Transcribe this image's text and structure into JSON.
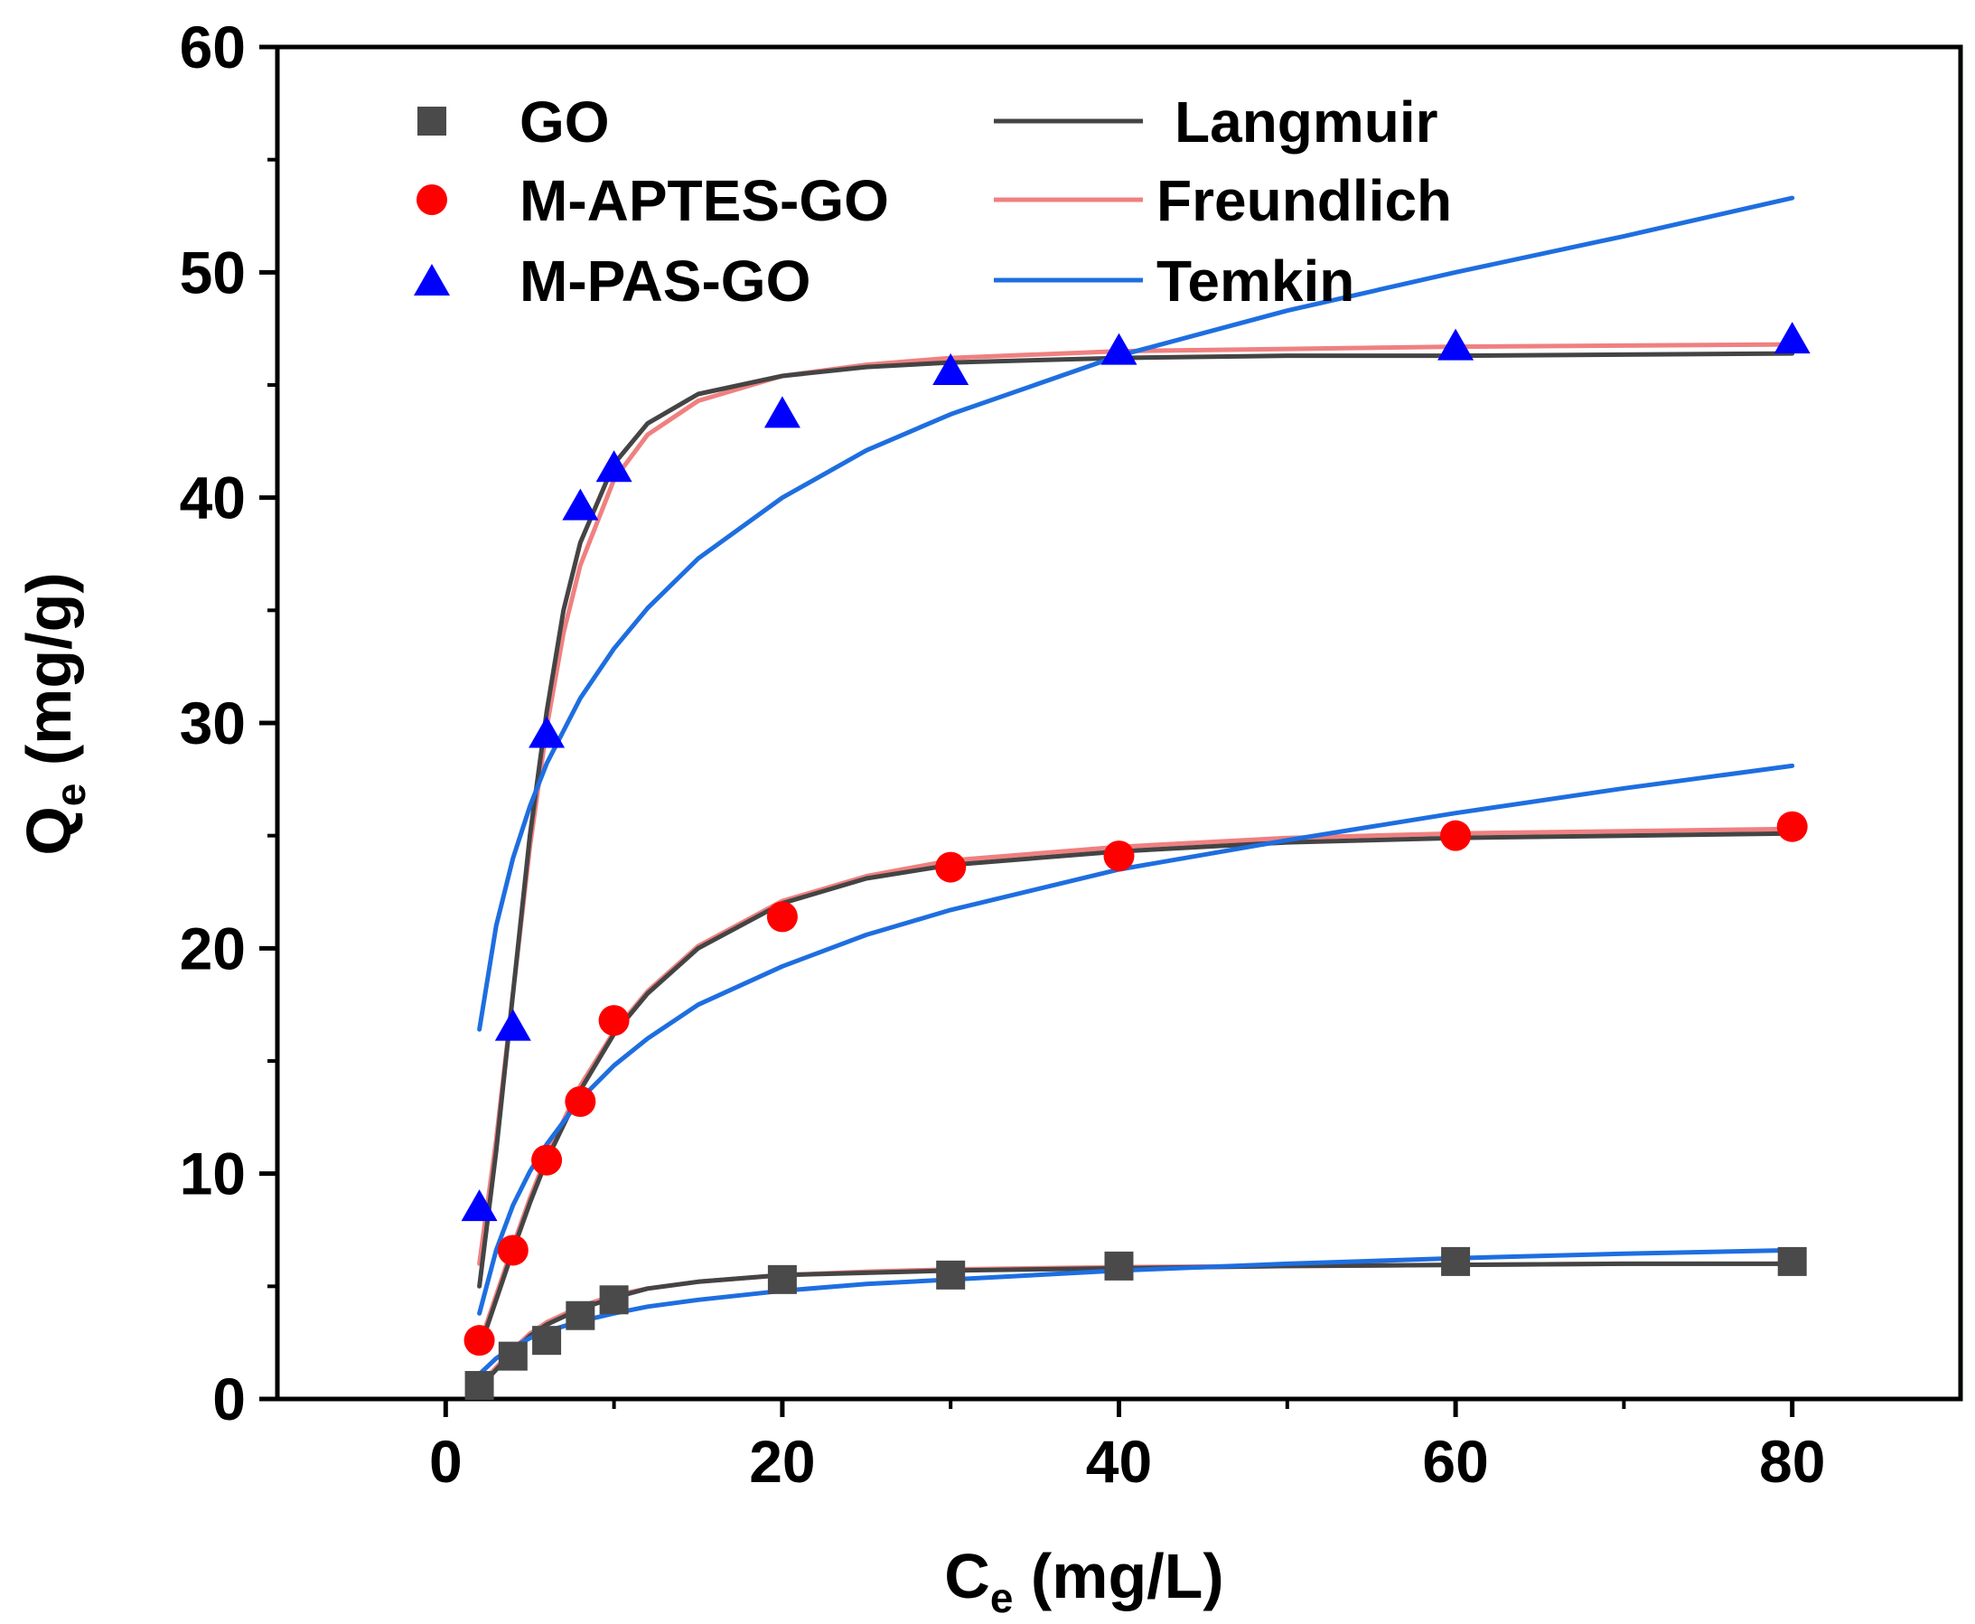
{
  "chart_data": {
    "type": "scatter",
    "xlabel": {
      "main": "C",
      "sub": "e",
      "rest": " (mg/L)"
    },
    "ylabel": {
      "main": "Q",
      "sub": "e",
      "rest": " (mg/g)"
    },
    "xlim": [
      -10,
      90
    ],
    "ylim": [
      0,
      60
    ],
    "x_ticks": [
      0,
      20,
      40,
      60,
      80
    ],
    "y_ticks": [
      0,
      10,
      20,
      30,
      40,
      50,
      60
    ],
    "x_tick_labels": [
      "0",
      "20",
      "40",
      "60",
      "80"
    ],
    "y_tick_labels": [
      "0",
      "10",
      "20",
      "30",
      "40",
      "50",
      "60"
    ],
    "series": [
      {
        "name": "GO",
        "marker": "square",
        "color": "#4a4a4a",
        "x": [
          2,
          4,
          6,
          8,
          10,
          20,
          30,
          40,
          60,
          80
        ],
        "y": [
          0.6,
          1.9,
          2.6,
          3.7,
          4.4,
          5.3,
          5.5,
          5.9,
          6.1,
          6.1
        ]
      },
      {
        "name": "M-APTES-GO",
        "marker": "circle",
        "color": "#ff0000",
        "x": [
          2,
          4,
          6,
          8,
          10,
          20,
          30,
          40,
          60,
          80
        ],
        "y": [
          2.6,
          6.6,
          10.6,
          13.2,
          16.8,
          21.4,
          23.6,
          24.1,
          25.0,
          25.4
        ]
      },
      {
        "name": "M-PAS-GO",
        "marker": "triangle",
        "color": "#0000ff",
        "x": [
          2,
          4,
          6,
          8,
          10,
          20,
          30,
          40,
          60,
          80
        ],
        "y": [
          8.5,
          16.5,
          29.5,
          39.6,
          41.3,
          43.7,
          45.6,
          46.5,
          46.7,
          47.0
        ]
      }
    ],
    "fits": [
      {
        "name": "Langmuir",
        "color": "#444444",
        "curves": [
          {
            "x": [
              2,
              3,
              4,
              5,
              6,
              8,
              10,
              12,
              15,
              20,
              25,
              30,
              40,
              50,
              60,
              70,
              80
            ],
            "y": [
              0.5,
              1.3,
              2.1,
              2.8,
              3.3,
              4.0,
              4.5,
              4.9,
              5.2,
              5.5,
              5.6,
              5.7,
              5.8,
              5.9,
              5.95,
              6.0,
              6.0
            ]
          },
          {
            "x": [
              2,
              3,
              4,
              5,
              6,
              8,
              10,
              12,
              15,
              20,
              25,
              30,
              40,
              50,
              60,
              70,
              80
            ],
            "y": [
              2.2,
              4.4,
              6.6,
              8.7,
              10.6,
              13.7,
              16.2,
              18.0,
              20.0,
              22.0,
              23.1,
              23.7,
              24.3,
              24.7,
              24.9,
              25.0,
              25.1
            ]
          },
          {
            "x": [
              2,
              3,
              4,
              5,
              6,
              7,
              8,
              10,
              12,
              15,
              20,
              25,
              30,
              40,
              50,
              60,
              80
            ],
            "y": [
              5.0,
              11.0,
              18.0,
              25.0,
              30.5,
              35.0,
              38.0,
              41.5,
              43.3,
              44.6,
              45.4,
              45.8,
              46.0,
              46.2,
              46.3,
              46.3,
              46.4
            ]
          }
        ]
      },
      {
        "name": "Freundlich",
        "color": "#f08080",
        "curves": [
          {
            "x": [
              2,
              3,
              4,
              5,
              6,
              8,
              10,
              12,
              15,
              20,
              25,
              30,
              40,
              50,
              60,
              70,
              80
            ],
            "y": [
              0.6,
              1.4,
              2.2,
              2.9,
              3.4,
              4.1,
              4.6,
              4.9,
              5.2,
              5.5,
              5.65,
              5.75,
              5.85,
              5.9,
              5.95,
              6.0,
              6.0
            ]
          },
          {
            "x": [
              2,
              3,
              4,
              5,
              6,
              8,
              10,
              12,
              15,
              20,
              25,
              30,
              40,
              50,
              60,
              70,
              80
            ],
            "y": [
              2.4,
              4.6,
              6.8,
              8.9,
              10.8,
              13.9,
              16.3,
              18.1,
              20.1,
              22.1,
              23.2,
              23.9,
              24.5,
              24.9,
              25.1,
              25.2,
              25.3
            ]
          },
          {
            "x": [
              2,
              3,
              4,
              5,
              6,
              7,
              8,
              10,
              12,
              15,
              20,
              25,
              30,
              40,
              50,
              60,
              80
            ],
            "y": [
              6.0,
              11.5,
              18.0,
              24.5,
              29.8,
              34.0,
              37.0,
              40.8,
              42.8,
              44.3,
              45.4,
              45.9,
              46.2,
              46.5,
              46.6,
              46.7,
              46.8
            ]
          }
        ]
      },
      {
        "name": "Temkin",
        "color": "#1e6ee0",
        "curves": [
          {
            "x": [
              2,
              3,
              4,
              5,
              6,
              8,
              10,
              12,
              15,
              20,
              25,
              30,
              40,
              50,
              60,
              70,
              80
            ],
            "y": [
              1.1,
              1.8,
              2.3,
              2.7,
              3.0,
              3.45,
              3.8,
              4.1,
              4.4,
              4.8,
              5.1,
              5.3,
              5.7,
              6.0,
              6.25,
              6.45,
              6.6
            ]
          },
          {
            "x": [
              2,
              3,
              4,
              5,
              6,
              8,
              10,
              12,
              15,
              20,
              25,
              30,
              40,
              50,
              60,
              70,
              80
            ],
            "y": [
              3.8,
              6.6,
              8.6,
              10.1,
              11.3,
              13.3,
              14.8,
              16.0,
              17.5,
              19.2,
              20.6,
              21.7,
              23.5,
              24.8,
              26.0,
              27.1,
              28.1
            ]
          },
          {
            "x": [
              2,
              3,
              4,
              5,
              6,
              8,
              10,
              12,
              15,
              20,
              25,
              30,
              40,
              50,
              60,
              70,
              80
            ],
            "y": [
              16.4,
              21.0,
              24.0,
              26.3,
              28.2,
              31.1,
              33.3,
              35.1,
              37.3,
              40.0,
              42.1,
              43.7,
              46.3,
              48.3,
              50.0,
              51.6,
              53.3
            ]
          }
        ]
      }
    ]
  }
}
